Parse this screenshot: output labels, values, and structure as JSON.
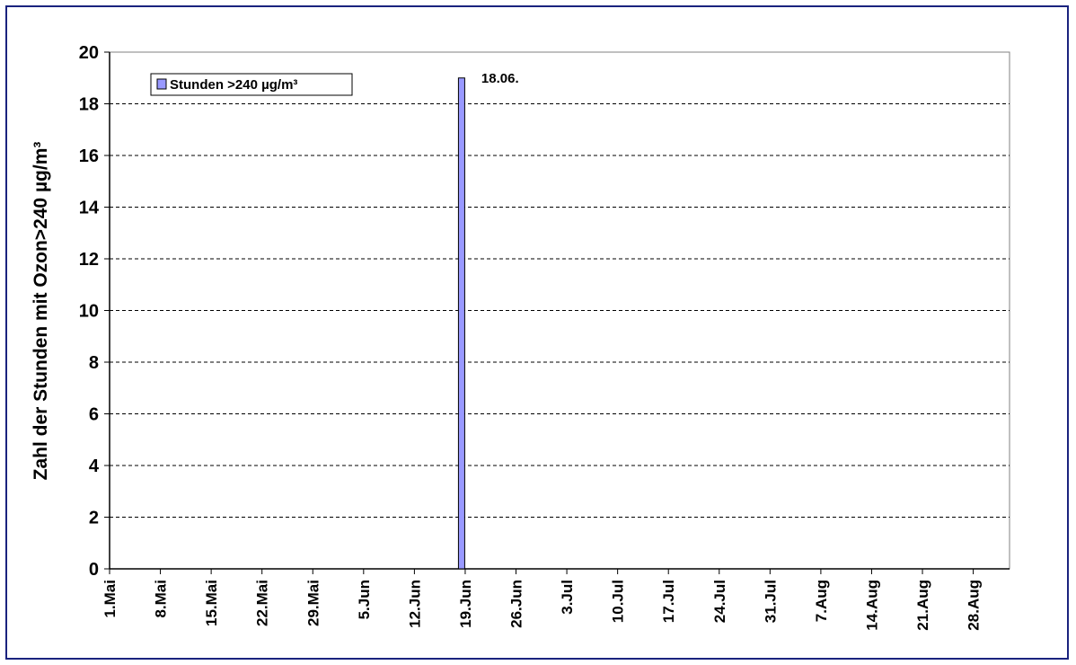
{
  "chart_data": {
    "type": "bar",
    "title": "",
    "xlabel": "",
    "ylabel": "Zahl der Stunden mit Ozon>240 µg/m³",
    "ylim": [
      0,
      20
    ],
    "y_ticks": [
      0,
      2,
      4,
      6,
      8,
      10,
      12,
      14,
      16,
      18,
      20
    ],
    "x_tick_labels": [
      "1.Mai",
      "8.Mai",
      "15.Mai",
      "22.Mai",
      "29.Mai",
      "5.Jun",
      "12.Jun",
      "19.Jun",
      "26.Jun",
      "3.Jul",
      "10.Jul",
      "17.Jul",
      "24.Jul",
      "31.Jul",
      "7.Aug",
      "14.Aug",
      "21.Aug",
      "28.Aug"
    ],
    "x_range": [
      "1.Mai",
      "2.Sep"
    ],
    "grid": "horizontal dashed",
    "legend_position": "top-left",
    "series": [
      {
        "name": "Stunden >240 µg/m³",
        "color": "#9999ff",
        "points": [
          {
            "x": "18.06.",
            "y": 19
          }
        ]
      }
    ],
    "annotations": [
      {
        "text": "18.06.",
        "x": "18.06.",
        "y": 19
      }
    ]
  }
}
